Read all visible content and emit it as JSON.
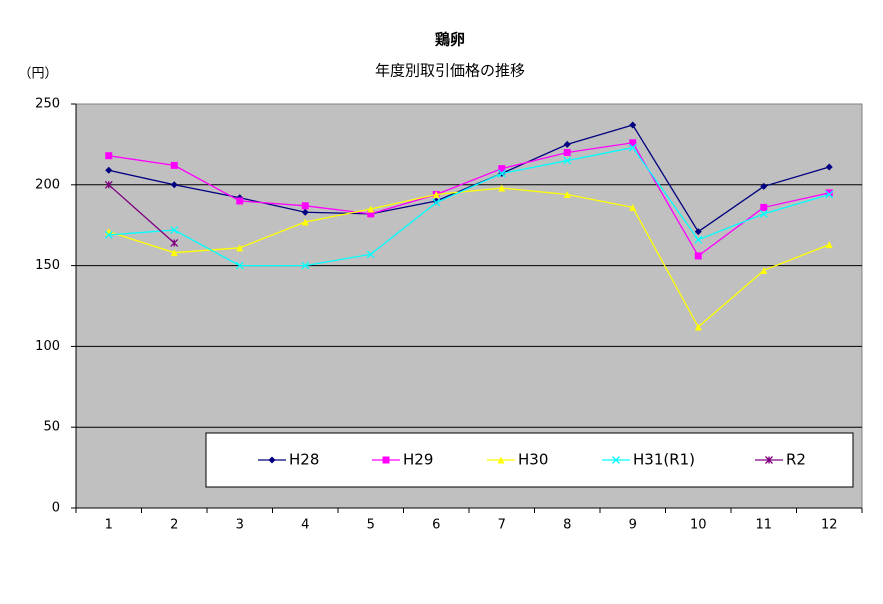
{
  "chart_data": {
    "type": "line",
    "title": "鶏卵",
    "subtitle": "年度別取引価格の推移",
    "y_label": "（円）",
    "categories": [
      "1",
      "2",
      "3",
      "4",
      "5",
      "6",
      "7",
      "8",
      "9",
      "10",
      "11",
      "12"
    ],
    "ylim": [
      0,
      250
    ],
    "yticks": [
      0,
      50,
      100,
      150,
      200,
      250
    ],
    "grid": true,
    "legend_position": "bottom",
    "series": [
      {
        "name": "H28",
        "color": "#000080",
        "marker": "diamond",
        "values": [
          209,
          200,
          192,
          183,
          182,
          190,
          207,
          225,
          237,
          171,
          199,
          211
        ]
      },
      {
        "name": "H29",
        "color": "#ff00ff",
        "marker": "square",
        "values": [
          218,
          212,
          190,
          187,
          182,
          194,
          210,
          220,
          226,
          156,
          186,
          195
        ]
      },
      {
        "name": "H30",
        "color": "#ffff00",
        "marker": "triangle",
        "values": [
          171,
          158,
          161,
          177,
          185,
          194,
          198,
          194,
          186,
          112,
          147,
          163
        ]
      },
      {
        "name": "H31(R1)",
        "color": "#00ffff",
        "marker": "x",
        "values": [
          169,
          172,
          150,
          150,
          157,
          189,
          207,
          215,
          223,
          166,
          182,
          194
        ]
      },
      {
        "name": "R2",
        "color": "#800080",
        "marker": "star",
        "values": [
          200,
          164,
          null,
          null,
          null,
          null,
          null,
          null,
          null,
          null,
          null,
          null
        ]
      }
    ]
  }
}
